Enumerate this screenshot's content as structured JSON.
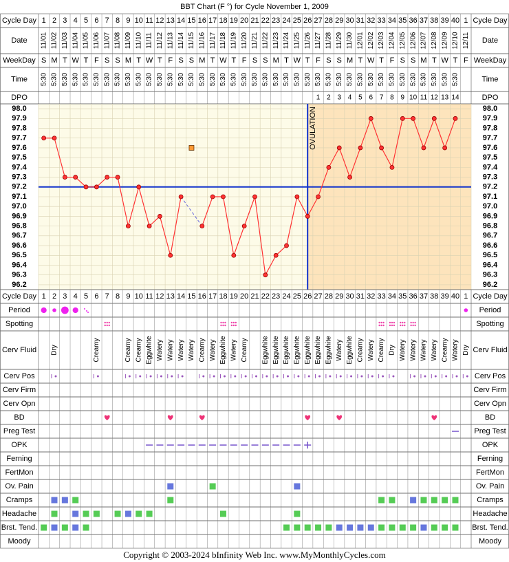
{
  "header": {
    "title": "BBT Chart (F °) for Cycle November 1, 2009"
  },
  "row_labels": {
    "cycle_day": "Cycle Day",
    "date": "Date",
    "weekday": "WeekDay",
    "time": "Time",
    "dpo": "DPO"
  },
  "days": {
    "date": [
      "11/01",
      "11/02",
      "11/03",
      "11/04",
      "11/05",
      "11/06",
      "11/07",
      "11/08",
      "11/09",
      "11/10",
      "11/11",
      "11/12",
      "11/13",
      "11/14",
      "11/15",
      "11/16",
      "11/17",
      "11/18",
      "11/19",
      "11/20",
      "11/21",
      "11/22",
      "11/23",
      "11/24",
      "11/25",
      "11/26",
      "11/27",
      "11/28",
      "11/29",
      "11/30",
      "12/01",
      "12/02",
      "12/03",
      "12/04",
      "12/05",
      "12/06",
      "12/07",
      "12/08",
      "12/09",
      "12/10",
      "12/11"
    ],
    "weekday": [
      "S",
      "M",
      "T",
      "W",
      "T",
      "F",
      "S",
      "S",
      "M",
      "T",
      "W",
      "T",
      "F",
      "S",
      "S",
      "M",
      "T",
      "W",
      "T",
      "F",
      "S",
      "S",
      "M",
      "T",
      "W",
      "T",
      "F",
      "S",
      "S",
      "M",
      "T",
      "W",
      "T",
      "F",
      "S",
      "S",
      "M",
      "T",
      "W",
      "T",
      "F"
    ],
    "time": [
      "5:30",
      "5:30",
      "5:30",
      "5:30",
      "5:30",
      "5:30",
      "5:30",
      "5:30",
      "5:30",
      "5:30",
      "5:30",
      "5:30",
      "5:30",
      "5:30",
      "5:30",
      "5:30",
      "5:30",
      "5:30",
      "5:30",
      "5:30",
      "5:30",
      "5:30",
      "5:30",
      "5:30",
      "5:30",
      "5:30",
      "5:30",
      "5:30",
      "5:30",
      "5:30",
      "5:30",
      "5:30",
      "5:30",
      "5:30",
      "5:30",
      "5:30",
      "5:30",
      "5:30",
      "5:30",
      "5:30",
      null
    ],
    "dpo": [
      null,
      null,
      null,
      null,
      null,
      null,
      null,
      null,
      null,
      null,
      null,
      null,
      null,
      null,
      null,
      null,
      null,
      null,
      null,
      null,
      null,
      null,
      null,
      null,
      null,
      null,
      1,
      2,
      3,
      4,
      5,
      6,
      7,
      8,
      9,
      10,
      11,
      12,
      13,
      14,
      null
    ]
  },
  "chart_data": {
    "type": "line",
    "categories": [
      "1",
      "2",
      "3",
      "4",
      "5",
      "6",
      "7",
      "8",
      "9",
      "10",
      "11",
      "12",
      "13",
      "14",
      "15",
      "16",
      "17",
      "18",
      "19",
      "20",
      "21",
      "22",
      "23",
      "24",
      "25",
      "26",
      "27",
      "28",
      "29",
      "30",
      "31",
      "32",
      "33",
      "34",
      "35",
      "36",
      "37",
      "38",
      "39",
      "40",
      "1"
    ],
    "series": [
      {
        "color": "#ff3333",
        "values": [
          97.7,
          97.7,
          97.3,
          97.3,
          97.2,
          97.2,
          97.3,
          97.3,
          96.8,
          97.2,
          96.8,
          96.9,
          96.5,
          97.1,
          null,
          96.8,
          97.1,
          97.1,
          96.5,
          96.8,
          97.1,
          96.3,
          96.5,
          96.6,
          97.1,
          96.9,
          97.1,
          97.4,
          97.6,
          97.3,
          97.6,
          97.9,
          97.6,
          97.4,
          97.9,
          97.9,
          97.6,
          97.9,
          97.6,
          97.9,
          null
        ]
      }
    ],
    "discarded": [
      null,
      null,
      null,
      null,
      null,
      null,
      null,
      null,
      null,
      null,
      null,
      null,
      null,
      null,
      97.6,
      null,
      null,
      null,
      null,
      null,
      null,
      null,
      null,
      null,
      null,
      null,
      null,
      null,
      null,
      null,
      null,
      null,
      null,
      null,
      null,
      null,
      null,
      null,
      null,
      null,
      null
    ],
    "discarded_color": "#ff9933",
    "ylim": [
      96.15,
      98.05
    ],
    "yticks": [
      {
        "value": 98,
        "label": "98.0"
      },
      97.9,
      97.8,
      97.7,
      97.6,
      97.5,
      97.4,
      97.3,
      97.2,
      97.1,
      {
        "value": 97,
        "label": "97.0"
      },
      96.9,
      96.8,
      96.7,
      96.6,
      96.5,
      96.4,
      96.3,
      96.2
    ],
    "grid": true,
    "coverline": 97.2,
    "ovulation_index": 25,
    "ovulation_label": "OVULATION"
  },
  "palette": [
    "#6677dd",
    "#55cc55"
  ],
  "fertility_rows": [
    {
      "label": "Period",
      "kind": "period",
      "values": [
        2,
        1,
        3,
        2,
        0.5,
        null,
        null,
        null,
        null,
        null,
        null,
        null,
        null,
        null,
        null,
        null,
        null,
        null,
        null,
        null,
        null,
        null,
        null,
        null,
        null,
        null,
        null,
        null,
        null,
        null,
        null,
        null,
        null,
        null,
        null,
        null,
        null,
        null,
        null,
        null,
        1
      ]
    },
    {
      "label": "Spotting",
      "kind": "spot",
      "values": [
        null,
        null,
        null,
        null,
        null,
        null,
        1,
        null,
        null,
        null,
        null,
        null,
        null,
        null,
        null,
        null,
        null,
        1,
        1,
        null,
        null,
        null,
        null,
        null,
        null,
        null,
        null,
        null,
        null,
        null,
        null,
        null,
        1,
        1,
        1,
        1,
        null,
        null,
        null,
        null,
        null
      ]
    },
    {
      "label": "Cerv Fluid",
      "kind": "text",
      "values": [
        null,
        "Dry",
        null,
        null,
        null,
        "Creamy",
        null,
        null,
        "Creamy",
        "Creamy",
        "Eggwhite",
        "Watery",
        "Watery",
        "Watery",
        "Watery",
        "Creamy",
        "Watery",
        "Eggwhite",
        "Watery",
        "Creamy",
        null,
        "Eggwhite",
        "Eggwhite",
        "Eggwhite",
        "Eggwhite",
        "Eggwhite",
        "Eggwhite",
        "Eggwhite",
        "Watery",
        "Eggwhite",
        "Creamy",
        "Watery",
        "Creamy",
        "Dry",
        "Watery",
        "Watery",
        "Watery",
        "Watery",
        "Creamy",
        "Watery",
        "Dry"
      ]
    },
    {
      "label": "Cerv Pos",
      "kind": "mark",
      "values": [
        null,
        1,
        null,
        null,
        null,
        1,
        null,
        null,
        1,
        1,
        1,
        1,
        1,
        1,
        null,
        1,
        1,
        1,
        1,
        1,
        1,
        1,
        1,
        1,
        1,
        1,
        1,
        1,
        1,
        1,
        1,
        1,
        1,
        1,
        null,
        1,
        1,
        1,
        1,
        1,
        1
      ]
    },
    {
      "label": "Cerv Firm"
    },
    {
      "label": "Cerv Opn"
    },
    {
      "label": "BD",
      "kind": "heart",
      "values": [
        null,
        null,
        null,
        null,
        null,
        null,
        1,
        null,
        null,
        null,
        null,
        null,
        1,
        null,
        null,
        1,
        null,
        null,
        null,
        null,
        null,
        null,
        null,
        null,
        null,
        1,
        null,
        null,
        1,
        null,
        null,
        null,
        null,
        null,
        null,
        null,
        null,
        1,
        null,
        null,
        null
      ]
    },
    {
      "label": "Preg Test",
      "kind": "test",
      "values": [
        null,
        null,
        null,
        null,
        null,
        null,
        null,
        null,
        null,
        null,
        null,
        null,
        null,
        null,
        null,
        null,
        null,
        null,
        null,
        null,
        null,
        null,
        null,
        null,
        null,
        null,
        null,
        null,
        null,
        null,
        null,
        null,
        null,
        null,
        null,
        null,
        null,
        null,
        null,
        0,
        null
      ]
    },
    {
      "label": "OPK",
      "kind": "test",
      "values": [
        null,
        null,
        null,
        null,
        null,
        null,
        null,
        null,
        null,
        null,
        0,
        0,
        0,
        0,
        0,
        0,
        0,
        0,
        0,
        0,
        0,
        0,
        0,
        0,
        0,
        1,
        null,
        null,
        null,
        null,
        null,
        null,
        null,
        null,
        null,
        null,
        null,
        null,
        null,
        null,
        null
      ]
    },
    {
      "label": "Ferning"
    },
    {
      "label": "FertMon"
    },
    {
      "label": "Ov. Pain",
      "kind": "box",
      "values": [
        null,
        null,
        null,
        null,
        null,
        null,
        null,
        null,
        null,
        null,
        null,
        null,
        1,
        null,
        null,
        null,
        2,
        null,
        null,
        null,
        null,
        null,
        null,
        null,
        1,
        null,
        null,
        null,
        null,
        null,
        null,
        null,
        null,
        null,
        null,
        null,
        null,
        null,
        null,
        null,
        null
      ]
    },
    {
      "label": "Cramps",
      "kind": "box",
      "values": [
        null,
        1,
        1,
        2,
        null,
        null,
        null,
        null,
        null,
        null,
        null,
        null,
        2,
        null,
        null,
        null,
        null,
        null,
        null,
        null,
        null,
        null,
        null,
        null,
        null,
        null,
        null,
        null,
        null,
        null,
        null,
        null,
        2,
        2,
        null,
        1,
        2,
        2,
        2,
        2,
        null
      ]
    },
    {
      "label": "Headache",
      "kind": "box",
      "values": [
        null,
        2,
        null,
        1,
        2,
        2,
        null,
        2,
        1,
        2,
        2,
        null,
        null,
        null,
        null,
        null,
        null,
        2,
        null,
        null,
        null,
        null,
        null,
        null,
        2,
        null,
        null,
        null,
        null,
        null,
        null,
        null,
        null,
        null,
        null,
        null,
        null,
        null,
        null,
        null,
        null
      ]
    },
    {
      "label": "Brst. Tend.",
      "kind": "box",
      "values": [
        2,
        1,
        2,
        1,
        2,
        null,
        null,
        null,
        null,
        null,
        null,
        null,
        null,
        null,
        null,
        null,
        null,
        null,
        null,
        null,
        null,
        null,
        null,
        2,
        2,
        2,
        2,
        2,
        1,
        1,
        1,
        1,
        2,
        2,
        2,
        2,
        1,
        2,
        2,
        2,
        null
      ]
    },
    {
      "label": "Moody"
    }
  ],
  "footer": "Copyright © 2003-2024 bInfinity Web Inc.     www.MyMonthlyCycles.com"
}
